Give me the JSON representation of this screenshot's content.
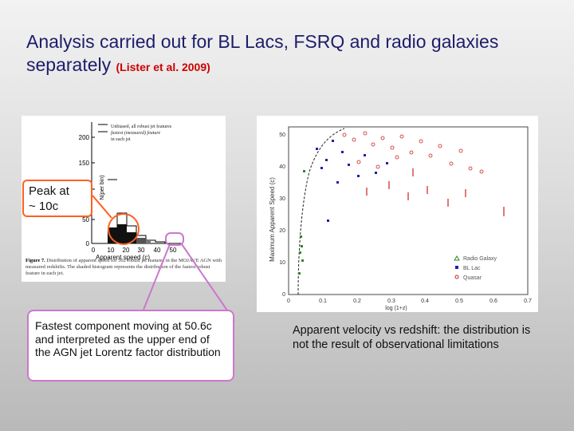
{
  "title": {
    "main": "Analysis carried out for BL Lacs, FSRQ and radio galaxies separately",
    "citation": "(Lister et al. 2009)"
  },
  "histogram": {
    "legend_lines": [
      "Unbiased, all robust jet features",
      "fastest (measured) feature",
      "in each jet"
    ],
    "y_axis_label": "N(per bin)",
    "y_ticks": [
      "0",
      "50",
      "100",
      "150",
      "200"
    ],
    "x_ticks": [
      "0",
      "10",
      "20",
      "30",
      "40",
      "50"
    ],
    "x_axis_label": "Apparent speed (c)",
    "caption_label": "Figure 7.",
    "caption_text": "Distribution of apparent speed for 502 robust jet features in the MOJAVE AGN with measured redshifts. The shaded histogram represents the distribution of the fastest robust feature in each jet."
  },
  "scatter": {
    "y_axis_label": "Maximum Apparent Speed (c)",
    "y_ticks": [
      "0",
      "10",
      "20",
      "30",
      "40",
      "50"
    ],
    "x_ticks": [
      "0",
      "0.1",
      "0.2",
      "0.3",
      "0.4",
      "0.5",
      "0.6",
      "0.7"
    ],
    "x_axis_label": "log (1+z)",
    "legend": [
      {
        "name": "Radio Galaxy",
        "color": "#2a8a2a"
      },
      {
        "name": "BL Lac",
        "color": "#2020aa"
      },
      {
        "name": "Quasar",
        "color": "#cc2020"
      }
    ]
  },
  "callouts": {
    "peak": [
      "Peak at",
      "~ 10c"
    ],
    "fastest": "Fastest component moving at 50.6c and interpreted as the upper end of the AGN jet Lorentz factor distribution",
    "apparent": "Apparent velocity vs redshift: the distribution is not the result of observational limitations"
  },
  "colors": {
    "title_text": "#1d1d6b",
    "citation_text": "#cc0000",
    "peak_outline": "#ff6020",
    "fastest_outline": "#cc77cc"
  }
}
